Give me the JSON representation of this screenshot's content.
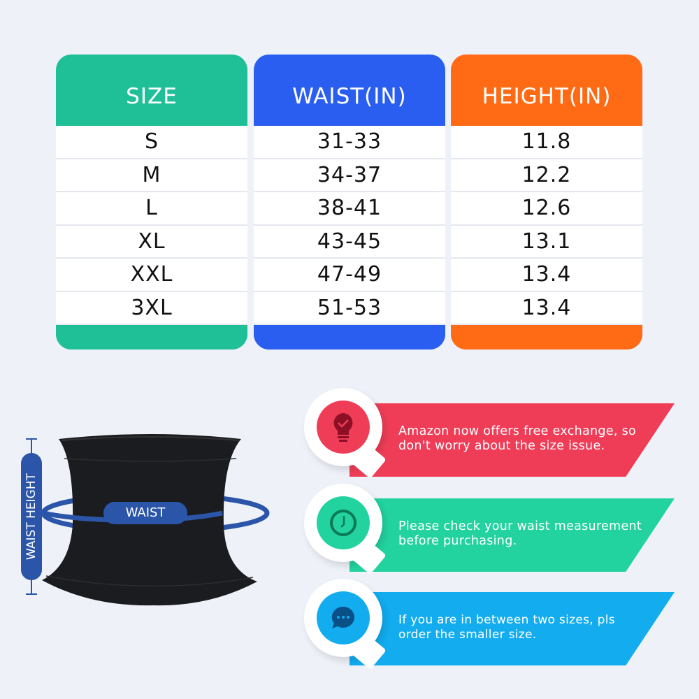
{
  "table": {
    "columns": [
      {
        "header": "SIZE",
        "color": "#1fbf97",
        "values": [
          "S",
          "M",
          "L",
          "XL",
          "XXL",
          "3XL"
        ]
      },
      {
        "header": "WAIST(IN)",
        "color": "#2a5ef0",
        "values": [
          "31-33",
          "34-37",
          "38-41",
          "43-45",
          "47-49",
          "51-53"
        ]
      },
      {
        "header": "HEIGHT(IN)",
        "color": "#ff6a14",
        "values": [
          "11.8",
          "12.2",
          "12.6",
          "13.1",
          "13.4",
          "13.4"
        ]
      }
    ]
  },
  "diagram": {
    "waist_label": "WAIST",
    "height_label": "WAIST HEIGHT",
    "accent": "#2b55a8"
  },
  "tips": [
    {
      "text": "Amazon now offers free exchange, so don't worry about the size issue.",
      "color": "#ef3d58",
      "icon": "lightbulb-check-icon"
    },
    {
      "text": "Please check your waist measurement before purchasing.",
      "color": "#22d39f",
      "icon": "clock-icon"
    },
    {
      "text": "If you are in between two sizes, pls order the smaller size.",
      "color": "#12acef",
      "icon": "chat-bubble-icon"
    }
  ]
}
